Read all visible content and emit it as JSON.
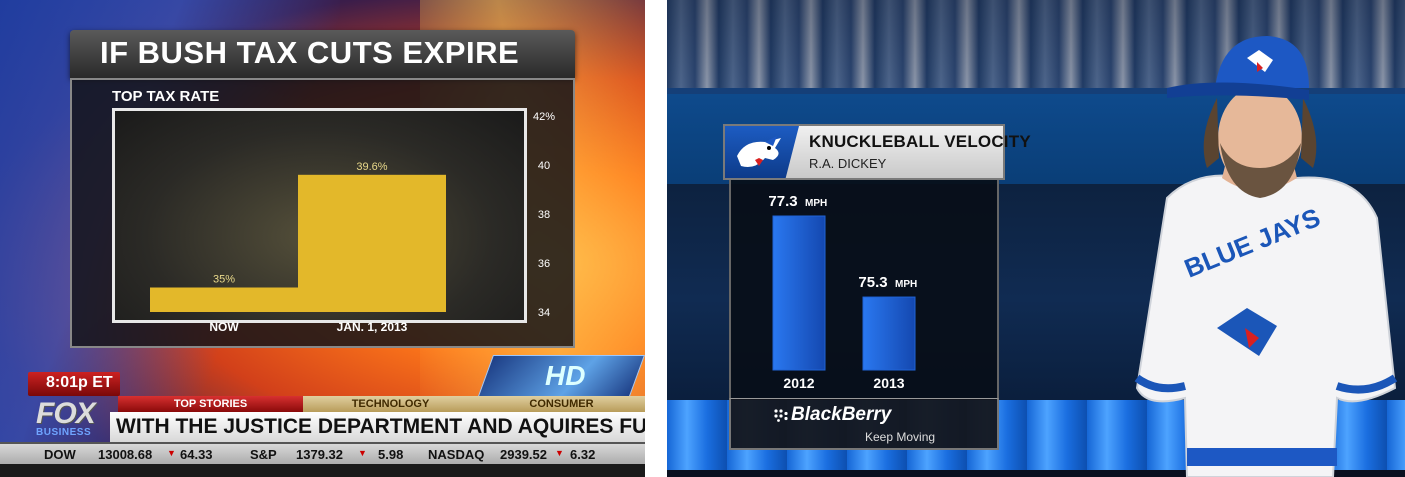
{
  "left_panel": {
    "title": "IF BUSH TAX CUTS EXPIRE",
    "subtitle": "TOP TAX RATE",
    "time": "8:01p ET",
    "hd_badge": "HD",
    "logo": {
      "main": "FOX",
      "sub": "BUSINESS"
    },
    "tabs": [
      "TOP STORIES",
      "TECHNOLOGY",
      "CONSUMER"
    ],
    "ticker": "WITH THE JUSTICE DEPARTMENT AND AQUIRES FULL T",
    "market": [
      {
        "label": "DOW",
        "value": "13008.68",
        "change": "64.33"
      },
      {
        "label": "S&P",
        "value": "1379.32",
        "change": "5.98"
      },
      {
        "label": "NASDAQ",
        "value": "2939.52",
        "change": "6.32"
      }
    ],
    "colors": {
      "bar": "#e3b82a",
      "accent": "#c22222"
    }
  },
  "right_panel": {
    "header_title": "KNUCKLEBALL VELOCITY",
    "header_subtitle": "R.A. DICKEY",
    "team_logo_icon": "blue-jays-logo-icon",
    "sponsor_name": "BlackBerry",
    "sponsor_tagline": "Keep Moving",
    "colors": {
      "bar": "#1f63d6",
      "header_bg": "#e4e4e4"
    }
  },
  "chart_data": [
    {
      "type": "bar",
      "title": "IF BUSH TAX CUTS EXPIRE",
      "subtitle": "TOP TAX RATE",
      "categories": [
        "NOW",
        "JAN. 1, 2013"
      ],
      "values": [
        35,
        39.6
      ],
      "data_labels": [
        "35%",
        "39.6%"
      ],
      "ylim": [
        34,
        42
      ],
      "yticks": [
        "34",
        "36",
        "38",
        "40",
        "42%"
      ],
      "ytick_values": [
        34,
        36,
        38,
        40,
        42
      ],
      "axis_side": "right",
      "grid": false
    },
    {
      "type": "bar",
      "title": "KNUCKLEBALL VELOCITY",
      "subtitle": "R.A. DICKEY",
      "categories": [
        "2012",
        "2013"
      ],
      "values": [
        77.3,
        75.3
      ],
      "data_labels": [
        "77.3",
        "75.3"
      ],
      "unit": "MPH",
      "ylim": [
        73.5,
        77.3
      ],
      "grid": false
    }
  ]
}
